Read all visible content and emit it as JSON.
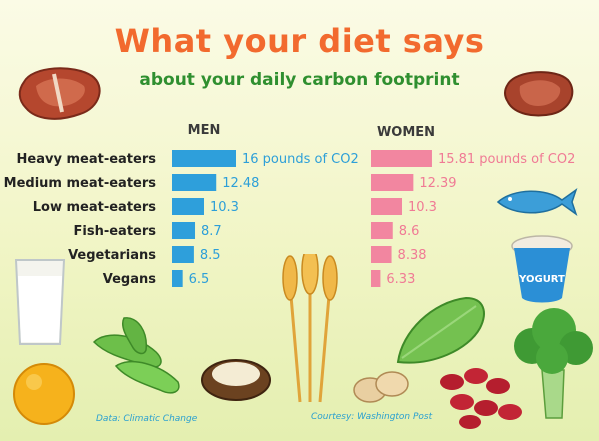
{
  "title": "What your diet says",
  "subtitle": "about your daily carbon footprint",
  "credits": {
    "data": "Data: Climatic Change",
    "courtesy": "Courtesy: Washington Post"
  },
  "decor": {
    "yogurt_label": "YOGURT"
  },
  "colors": {
    "men": "#2e9fdb",
    "women": "#f286a0",
    "title": "#f26a2e",
    "subtitle": "#2f8f2f"
  },
  "chart_data": {
    "type": "bar",
    "orientation": "horizontal",
    "categories": [
      "Heavy meat-eaters",
      "Medium meat-eaters",
      "Low meat-eaters",
      "Fish-eaters",
      "Vegetarians",
      "Vegans"
    ],
    "series": [
      {
        "name": "MEN",
        "values": [
          16,
          12.48,
          10.3,
          8.7,
          8.5,
          6.5
        ],
        "labels": [
          "16 pounds of CO2",
          "12.48",
          "10.3",
          "8.7",
          "8.5",
          "6.5"
        ]
      },
      {
        "name": "WOMEN",
        "values": [
          15.81,
          12.39,
          10.3,
          8.6,
          8.38,
          6.33
        ],
        "labels": [
          "15.81 pounds of CO2",
          "12.39",
          "10.3",
          "8.6",
          "8.38",
          "6.33"
        ]
      }
    ],
    "xlim": [
      4.6,
      16
    ],
    "grid": false,
    "legend": "none"
  }
}
